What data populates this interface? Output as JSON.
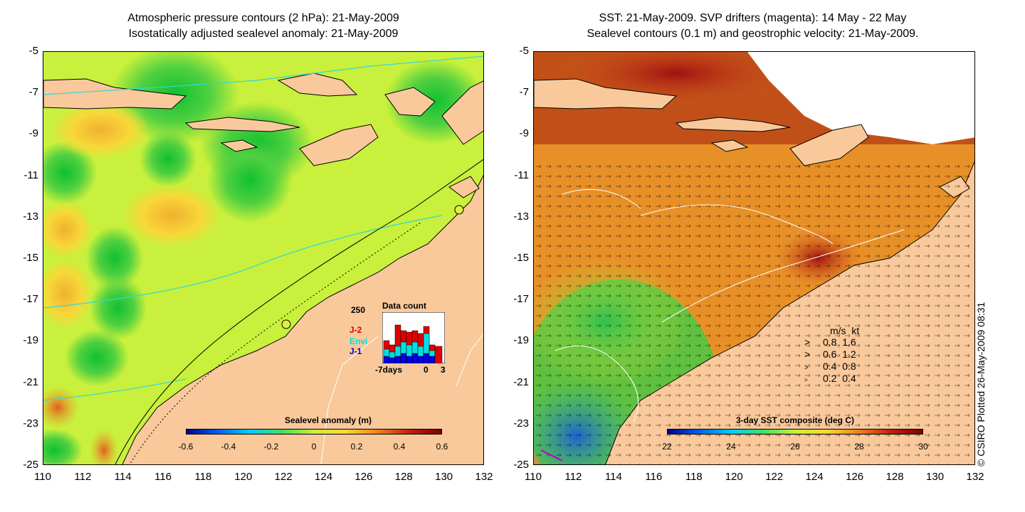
{
  "left_panel": {
    "title_line1": "Atmospheric pressure contours (2 hPa): 21-May-2009",
    "title_line2": "Isostatically adjusted sealevel anomaly: 21-May-2009",
    "colorbar": {
      "title": "Sealevel anomaly (m)",
      "labels": [
        "-0.6",
        "-0.4",
        "-0.2",
        "0",
        "0.2",
        "0.4",
        "0.6"
      ]
    },
    "inset": {
      "title": "Data count",
      "y_max_label": "250",
      "series": [
        {
          "name": "J-2",
          "color": "#e00000"
        },
        {
          "name": "Envi",
          "color": "#00e0e0"
        },
        {
          "name": "J-1",
          "color": "#0000e0"
        }
      ],
      "x_labels": [
        "-7days",
        "0",
        "3"
      ]
    }
  },
  "right_panel": {
    "title_line1": "SST: 21-May-2009. SVP drifters (magenta): 14 May - 22 May",
    "title_line2": "Sealevel contours (0.1 m) and geostrophic velocity: 21-May-2009.",
    "colorbar": {
      "title": "3-day SST composite (deg C)",
      "labels": [
        "22",
        "24",
        "26",
        "28",
        "30"
      ]
    },
    "velocity_legend": {
      "header": [
        "m/s",
        "kt"
      ],
      "rows": [
        [
          "0.8",
          "1.6"
        ],
        [
          "0.6",
          "1.2"
        ],
        [
          "0.4",
          "0.8"
        ],
        [
          "0.2",
          "0.4"
        ]
      ]
    }
  },
  "axes": {
    "y_ticks": [
      "-5",
      "-7",
      "-9",
      "-11",
      "-13",
      "-15",
      "-17",
      "-19",
      "-21",
      "-23",
      "-25"
    ],
    "x_ticks": [
      "110",
      "112",
      "114",
      "116",
      "118",
      "120",
      "122",
      "124",
      "126",
      "128",
      "130",
      "132"
    ]
  },
  "credit": "© CSIRO Plotted 26-May-2009 08:31",
  "colors": {
    "land": "#f9c99b",
    "sla_base": "#c8f03c",
    "sst_base": "#f0a020"
  }
}
